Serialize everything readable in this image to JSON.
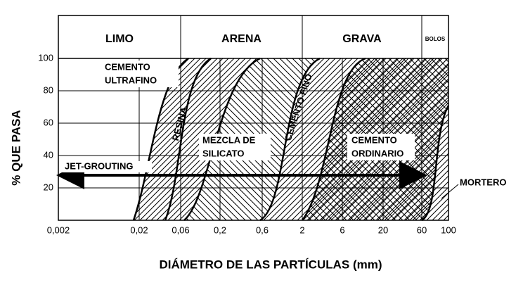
{
  "header": {
    "zones": [
      "LIMO",
      "ARENA",
      "GRAVA",
      "BOLOS"
    ]
  },
  "y_axis": {
    "title": "% QUE PASA",
    "ticks": [
      100,
      80,
      60,
      40,
      20
    ]
  },
  "x_axis": {
    "title": "DIÁMETRO DE LAS PARTÍCULAS (mm)",
    "ticks": [
      "0,002",
      "0,02",
      "0,06",
      "0,2",
      "0,6",
      "2",
      "6",
      "20",
      "60",
      "100"
    ]
  },
  "labels": {
    "ultrafino": [
      "CEMENTO",
      "ULTRAFINO"
    ],
    "resina": "RESINA",
    "silicato": [
      "MEZCLA DE",
      "SILICATO"
    ],
    "fino": "CEMENTO FINO",
    "ordinario": [
      "CEMENTO",
      "ORDINARIO"
    ],
    "jet": "JET-GROUTING",
    "mortero": "MORTERO"
  }
}
